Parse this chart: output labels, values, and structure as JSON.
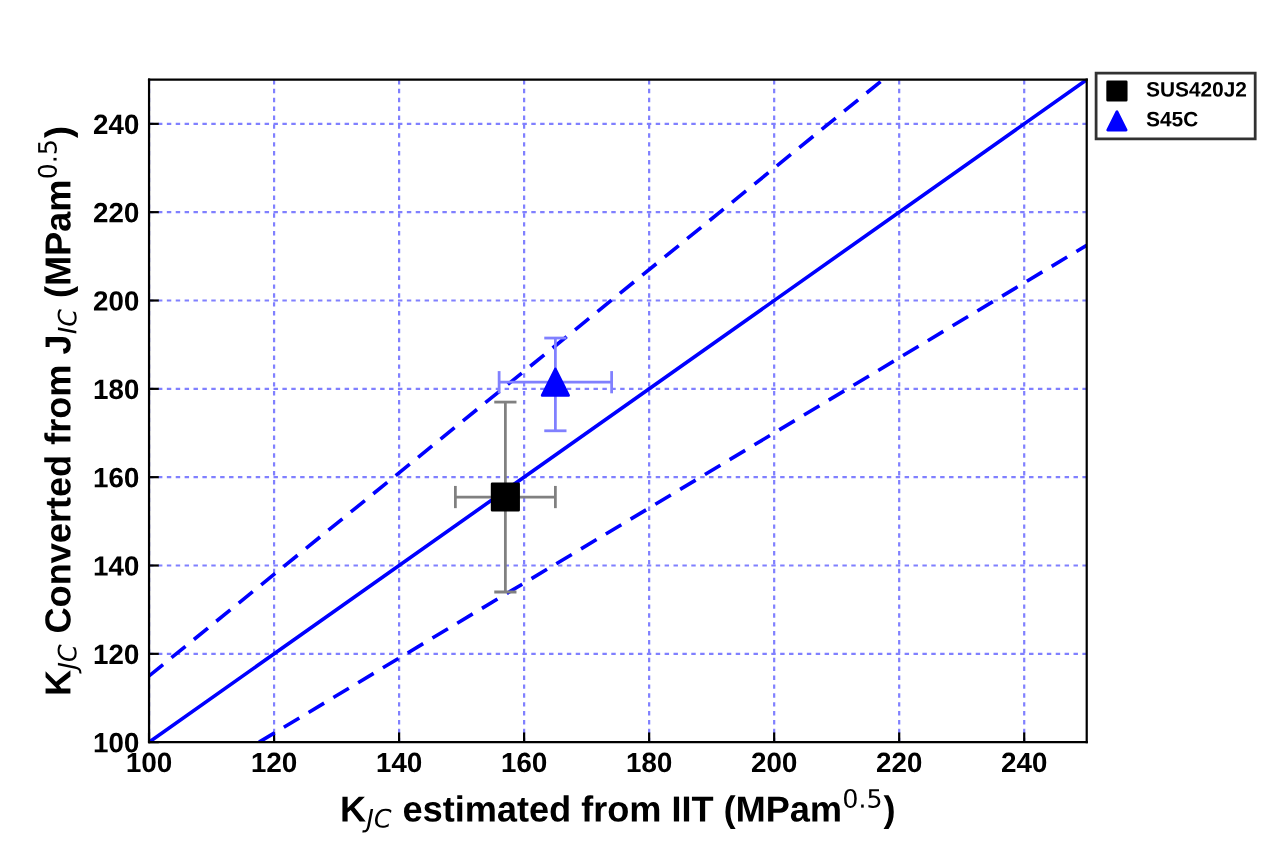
{
  "chart_data": {
    "type": "scatter",
    "xlabel": "K$_{JC}$ estimated from IIT (MPam$^{0.5}$)",
    "ylabel": "K$_{JC}$ Converted from J$_{IC}$ (MPam$^{0.5}$)",
    "xlim": [
      100,
      250
    ],
    "ylim": [
      100,
      250
    ],
    "xticks": [
      100,
      120,
      140,
      160,
      180,
      200,
      220,
      240
    ],
    "yticks": [
      100,
      120,
      140,
      160,
      180,
      200,
      220,
      240
    ],
    "grid": true,
    "legend": "top right",
    "series": [
      {
        "type": "line",
        "color": "#0000ff",
        "x": [
          100,
          250
        ],
        "values": [
          100,
          250
        ],
        "line_style": "solid",
        "marker": "none"
      },
      {
        "type": "line",
        "color": "#0000ff",
        "x": [
          100,
          217.4
        ],
        "values": [
          115,
          250
        ],
        "line_style": "dashed",
        "marker": "none"
      },
      {
        "type": "line",
        "color": "#0000ff",
        "x": [
          117.6,
          250
        ],
        "values": [
          100,
          212.5
        ],
        "line_style": "dashed",
        "marker": "none"
      },
      {
        "name": "SUS420J2",
        "color": "#000000",
        "marker": "square",
        "x": [
          157
        ],
        "values": [
          155.5
        ],
        "xerrors": [
          8
        ],
        "errors": [
          [
            134,
            177
          ]
        ]
      },
      {
        "name": "S45C",
        "color": "#0000ff",
        "marker": "triangle",
        "x": [
          165
        ],
        "values": [
          181.5
        ],
        "xerrors": [
          9
        ],
        "errors": [
          [
            170.5,
            191.5
          ]
        ]
      }
    ]
  }
}
